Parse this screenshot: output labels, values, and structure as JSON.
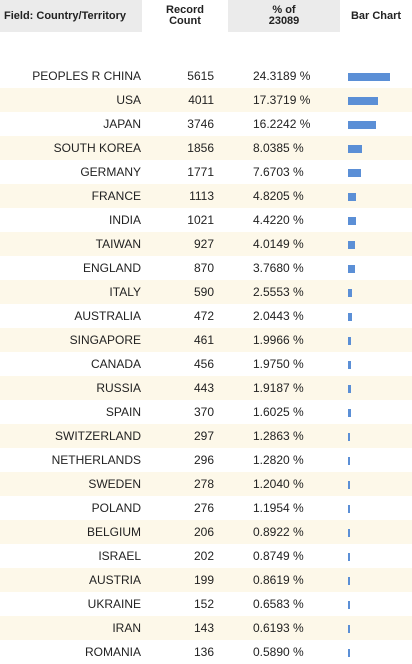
{
  "headers": {
    "field": "Field: Country/Territory",
    "count_line1": "Record",
    "count_line2": "Count",
    "pct_line1": "% of",
    "pct_line2": "23089",
    "bar": "Bar Chart"
  },
  "colors": {
    "bar": "#5b8fd6",
    "alt_row": "#fdf8e9"
  },
  "rows": [
    {
      "country": "PEOPLES R CHINA",
      "count": "5615",
      "pct": "24.3189 %",
      "share": 24.3189
    },
    {
      "country": "USA",
      "count": "4011",
      "pct": "17.3719 %",
      "share": 17.3719
    },
    {
      "country": "JAPAN",
      "count": "3746",
      "pct": "16.2242 %",
      "share": 16.2242
    },
    {
      "country": "SOUTH KOREA",
      "count": "1856",
      "pct": "8.0385 %",
      "share": 8.0385
    },
    {
      "country": "GERMANY",
      "count": "1771",
      "pct": "7.6703 %",
      "share": 7.6703
    },
    {
      "country": "FRANCE",
      "count": "1113",
      "pct": "4.8205 %",
      "share": 4.8205
    },
    {
      "country": "INDIA",
      "count": "1021",
      "pct": "4.4220 %",
      "share": 4.422
    },
    {
      "country": "TAIWAN",
      "count": "927",
      "pct": "4.0149 %",
      "share": 4.0149
    },
    {
      "country": "ENGLAND",
      "count": "870",
      "pct": "3.7680 %",
      "share": 3.768
    },
    {
      "country": "ITALY",
      "count": "590",
      "pct": "2.5553 %",
      "share": 2.5553
    },
    {
      "country": "AUSTRALIA",
      "count": "472",
      "pct": "2.0443 %",
      "share": 2.0443
    },
    {
      "country": "SINGAPORE",
      "count": "461",
      "pct": "1.9966 %",
      "share": 1.9966
    },
    {
      "country": "CANADA",
      "count": "456",
      "pct": "1.9750 %",
      "share": 1.975
    },
    {
      "country": "RUSSIA",
      "count": "443",
      "pct": "1.9187 %",
      "share": 1.9187
    },
    {
      "country": "SPAIN",
      "count": "370",
      "pct": "1.6025 %",
      "share": 1.6025
    },
    {
      "country": "SWITZERLAND",
      "count": "297",
      "pct": "1.2863 %",
      "share": 1.2863
    },
    {
      "country": "NETHERLANDS",
      "count": "296",
      "pct": "1.2820 %",
      "share": 1.282
    },
    {
      "country": "SWEDEN",
      "count": "278",
      "pct": "1.2040 %",
      "share": 1.204
    },
    {
      "country": "POLAND",
      "count": "276",
      "pct": "1.1954 %",
      "share": 1.1954
    },
    {
      "country": "BELGIUM",
      "count": "206",
      "pct": "0.8922 %",
      "share": 0.8922
    },
    {
      "country": "ISRAEL",
      "count": "202",
      "pct": "0.8749 %",
      "share": 0.8749
    },
    {
      "country": "AUSTRIA",
      "count": "199",
      "pct": "0.8619 %",
      "share": 0.8619
    },
    {
      "country": "UKRAINE",
      "count": "152",
      "pct": "0.6583 %",
      "share": 0.6583
    },
    {
      "country": "IRAN",
      "count": "143",
      "pct": "0.6193 %",
      "share": 0.6193
    },
    {
      "country": "ROMANIA",
      "count": "136",
      "pct": "0.5890 %",
      "share": 0.589
    }
  ]
}
